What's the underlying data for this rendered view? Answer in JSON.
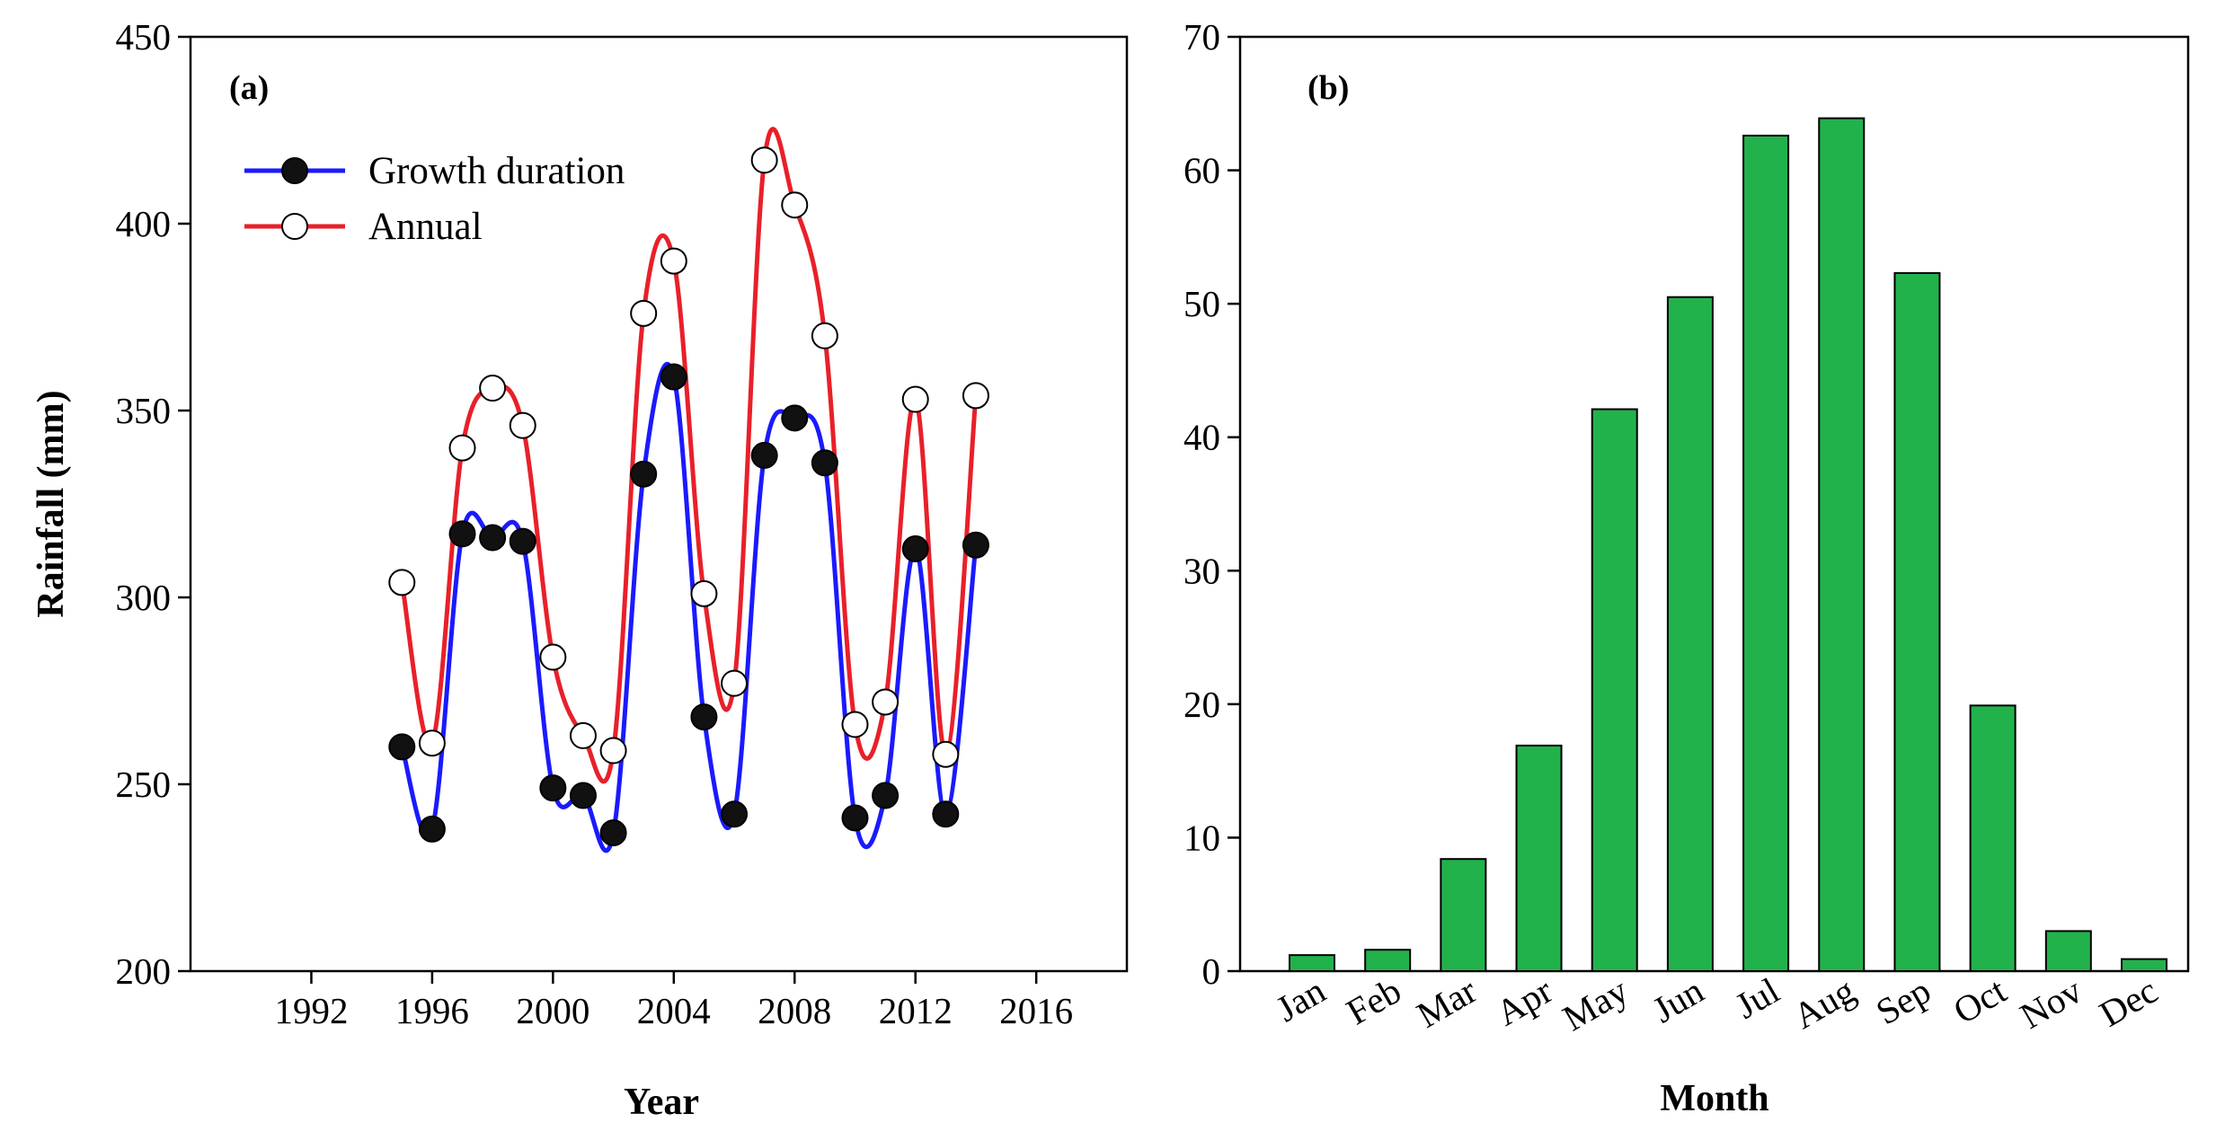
{
  "chart_data": [
    {
      "type": "line",
      "panel_label": "(a)",
      "xlabel": "Year",
      "ylabel": "Rainfall (mm)",
      "xlim": [
        1988,
        2019
      ],
      "ylim": [
        200,
        450
      ],
      "xticks": [
        1992,
        1996,
        2000,
        2004,
        2008,
        2012,
        2016
      ],
      "yticks": [
        200,
        250,
        300,
        350,
        400,
        450
      ],
      "legend_position": "top-left",
      "x": [
        1995,
        1996,
        1997,
        1998,
        1999,
        2000,
        2001,
        2002,
        2003,
        2004,
        2005,
        2006,
        2007,
        2008,
        2009,
        2010,
        2011,
        2012,
        2013,
        2014
      ],
      "series": [
        {
          "name": "Growth duration",
          "line_color": "#1a1aff",
          "marker": "filled-circle",
          "values": [
            260,
            238,
            317,
            316,
            315,
            249,
            247,
            237,
            333,
            359,
            268,
            242,
            338,
            348,
            336,
            241,
            247,
            313,
            242,
            314
          ]
        },
        {
          "name": "Annual",
          "line_color": "#e8202a",
          "marker": "open-circle",
          "values": [
            304,
            261,
            340,
            356,
            346,
            284,
            263,
            259,
            376,
            390,
            301,
            277,
            417,
            405,
            370,
            266,
            272,
            353,
            258,
            354
          ]
        }
      ]
    },
    {
      "type": "bar",
      "panel_label": "(b)",
      "xlabel": "Month",
      "ylabel": "",
      "ylim": [
        0,
        70
      ],
      "yticks": [
        0,
        10,
        20,
        30,
        40,
        50,
        60,
        70
      ],
      "bar_color": "#22b24c",
      "categories": [
        "Jan",
        "Feb",
        "Mar",
        "Apr",
        "May",
        "Jun",
        "Jul",
        "Aug",
        "Sep",
        "Oct",
        "Nov",
        "Dec"
      ],
      "values": [
        1.2,
        1.6,
        8.4,
        16.9,
        42.1,
        50.5,
        62.6,
        63.9,
        52.3,
        19.9,
        3.0,
        0.9
      ]
    }
  ]
}
